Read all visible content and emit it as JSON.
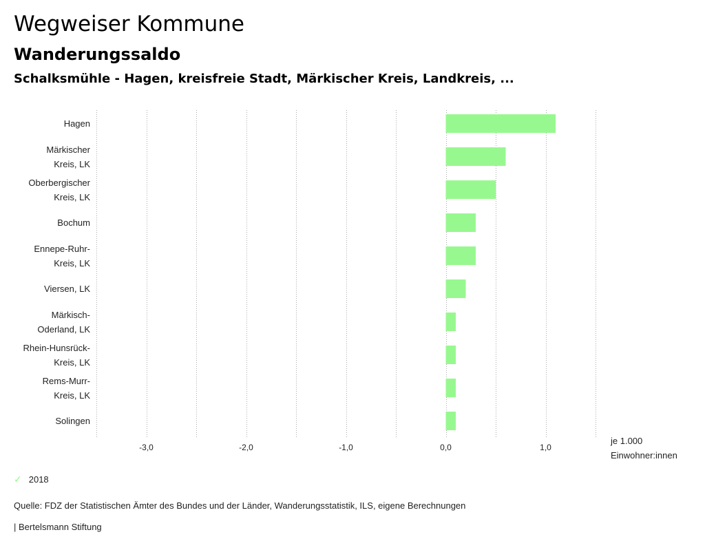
{
  "header": {
    "title": "Wegweiser Kommune",
    "subtitle": "Wanderungssaldo",
    "subtitle2": "Schalksmühle - Hagen, kreisfreie Stadt, Märkischer Kreis, Landkreis, ..."
  },
  "chart_data": {
    "type": "bar",
    "orientation": "horizontal",
    "categories": [
      [
        "Hagen"
      ],
      [
        "Märkischer",
        "Kreis, LK"
      ],
      [
        "Oberbergischer",
        "Kreis, LK"
      ],
      [
        "Bochum"
      ],
      [
        "Ennepe-Ruhr-",
        "Kreis, LK"
      ],
      [
        "Viersen, LK"
      ],
      [
        "Märkisch-",
        "Oderland, LK"
      ],
      [
        "Rhein-Hunsrück-",
        "Kreis, LK"
      ],
      [
        "Rems-Murr-",
        "Kreis, LK"
      ],
      [
        "Solingen"
      ]
    ],
    "series": [
      {
        "name": "2018",
        "color": "#98f890",
        "values": [
          1.1,
          0.6,
          0.5,
          0.3,
          0.3,
          0.2,
          0.1,
          0.1,
          0.1,
          0.1
        ]
      }
    ],
    "xlim": [
      -3.5,
      1.5
    ],
    "xticks": [
      -3.0,
      -2.0,
      -1.0,
      0.0,
      1.0
    ],
    "xtick_labels": [
      "-3,0",
      "-2,0",
      "-1,0",
      "0,0",
      "1,0"
    ],
    "grid": "dotted vertical every 0.5",
    "unit_label": [
      "je 1.000",
      "Einwohner:innen"
    ],
    "legend_position": "bottom-left"
  },
  "source": "Quelle: FDZ der Statistischen Ämter des Bundes und der Länder, Wanderungsstatistik, ILS, eigene Berechnungen",
  "footer": "| Bertelsmann Stiftung"
}
